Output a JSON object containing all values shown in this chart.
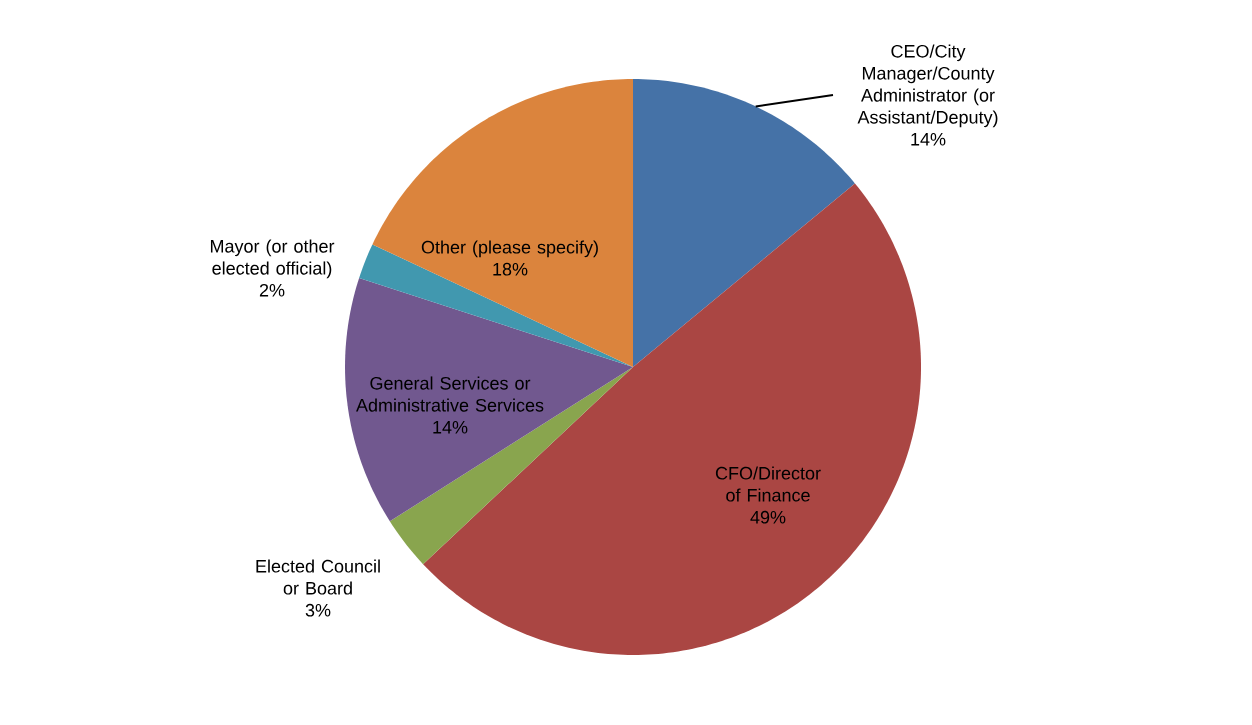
{
  "chart_data": {
    "type": "pie",
    "categories": [
      "CEO/City Manager/County Administrator (or Assistant/Deputy)",
      "CFO/Director of Finance",
      "Elected Council or Board",
      "General Services or Administrative Services",
      "Mayor (or other elected official)",
      "Other (please specify)"
    ],
    "values": [
      14,
      49,
      3,
      14,
      2,
      18
    ],
    "value_labels": [
      "14%",
      "49%",
      "3%",
      "14%",
      "2%",
      "18%"
    ],
    "colors": [
      "#4572a7",
      "#aa4643",
      "#89a54e",
      "#71588f",
      "#4198af",
      "#db843d"
    ]
  }
}
